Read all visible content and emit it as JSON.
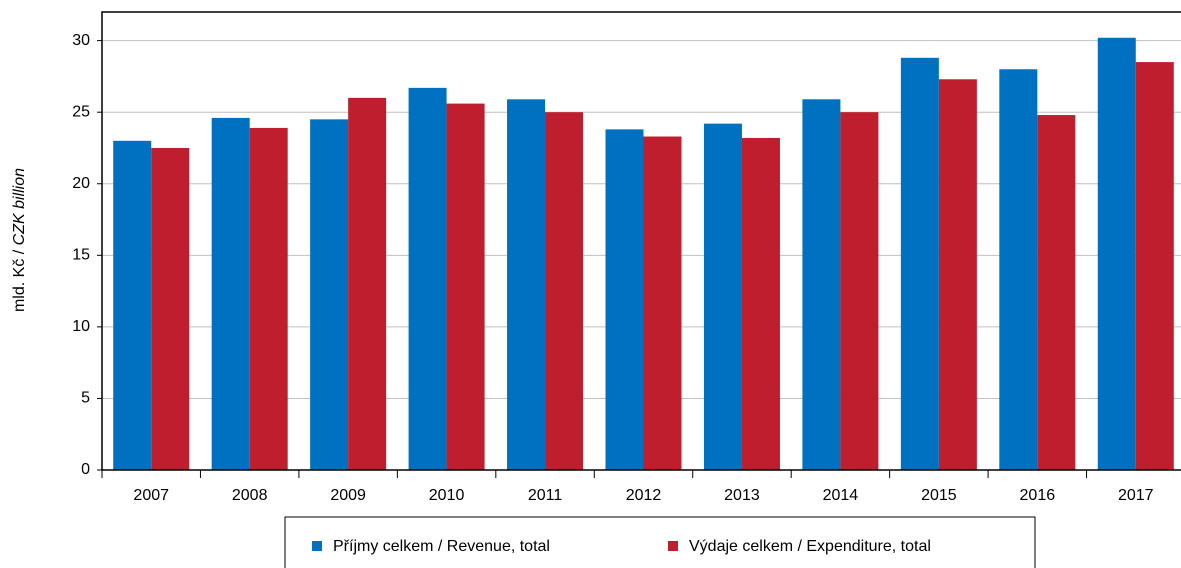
{
  "chart_data": {
    "type": "bar",
    "y_label": {
      "cz": "mld. Kč / ",
      "en": "CZK billion"
    },
    "categories": [
      "2007",
      "2008",
      "2009",
      "2010",
      "2011",
      "2012",
      "2013",
      "2014",
      "2015",
      "2016",
      "2017"
    ],
    "series": [
      {
        "name": "Příjmy  celkem / Revenue, total",
        "color": "#0070c0",
        "values": [
          23.0,
          24.6,
          24.5,
          26.7,
          25.9,
          23.8,
          24.2,
          25.9,
          28.8,
          28.0,
          30.2
        ]
      },
      {
        "name": "Výdaje celkem / Expenditure, total",
        "color": "#be1e2d",
        "values": [
          22.5,
          23.9,
          26.0,
          25.6,
          25.0,
          23.3,
          23.2,
          25.0,
          27.3,
          24.8,
          28.5
        ]
      }
    ],
    "ylim": [
      0,
      32
    ],
    "yticks": [
      0,
      5,
      10,
      15,
      20,
      25,
      30
    ],
    "grid": true,
    "legend": "bottom"
  }
}
